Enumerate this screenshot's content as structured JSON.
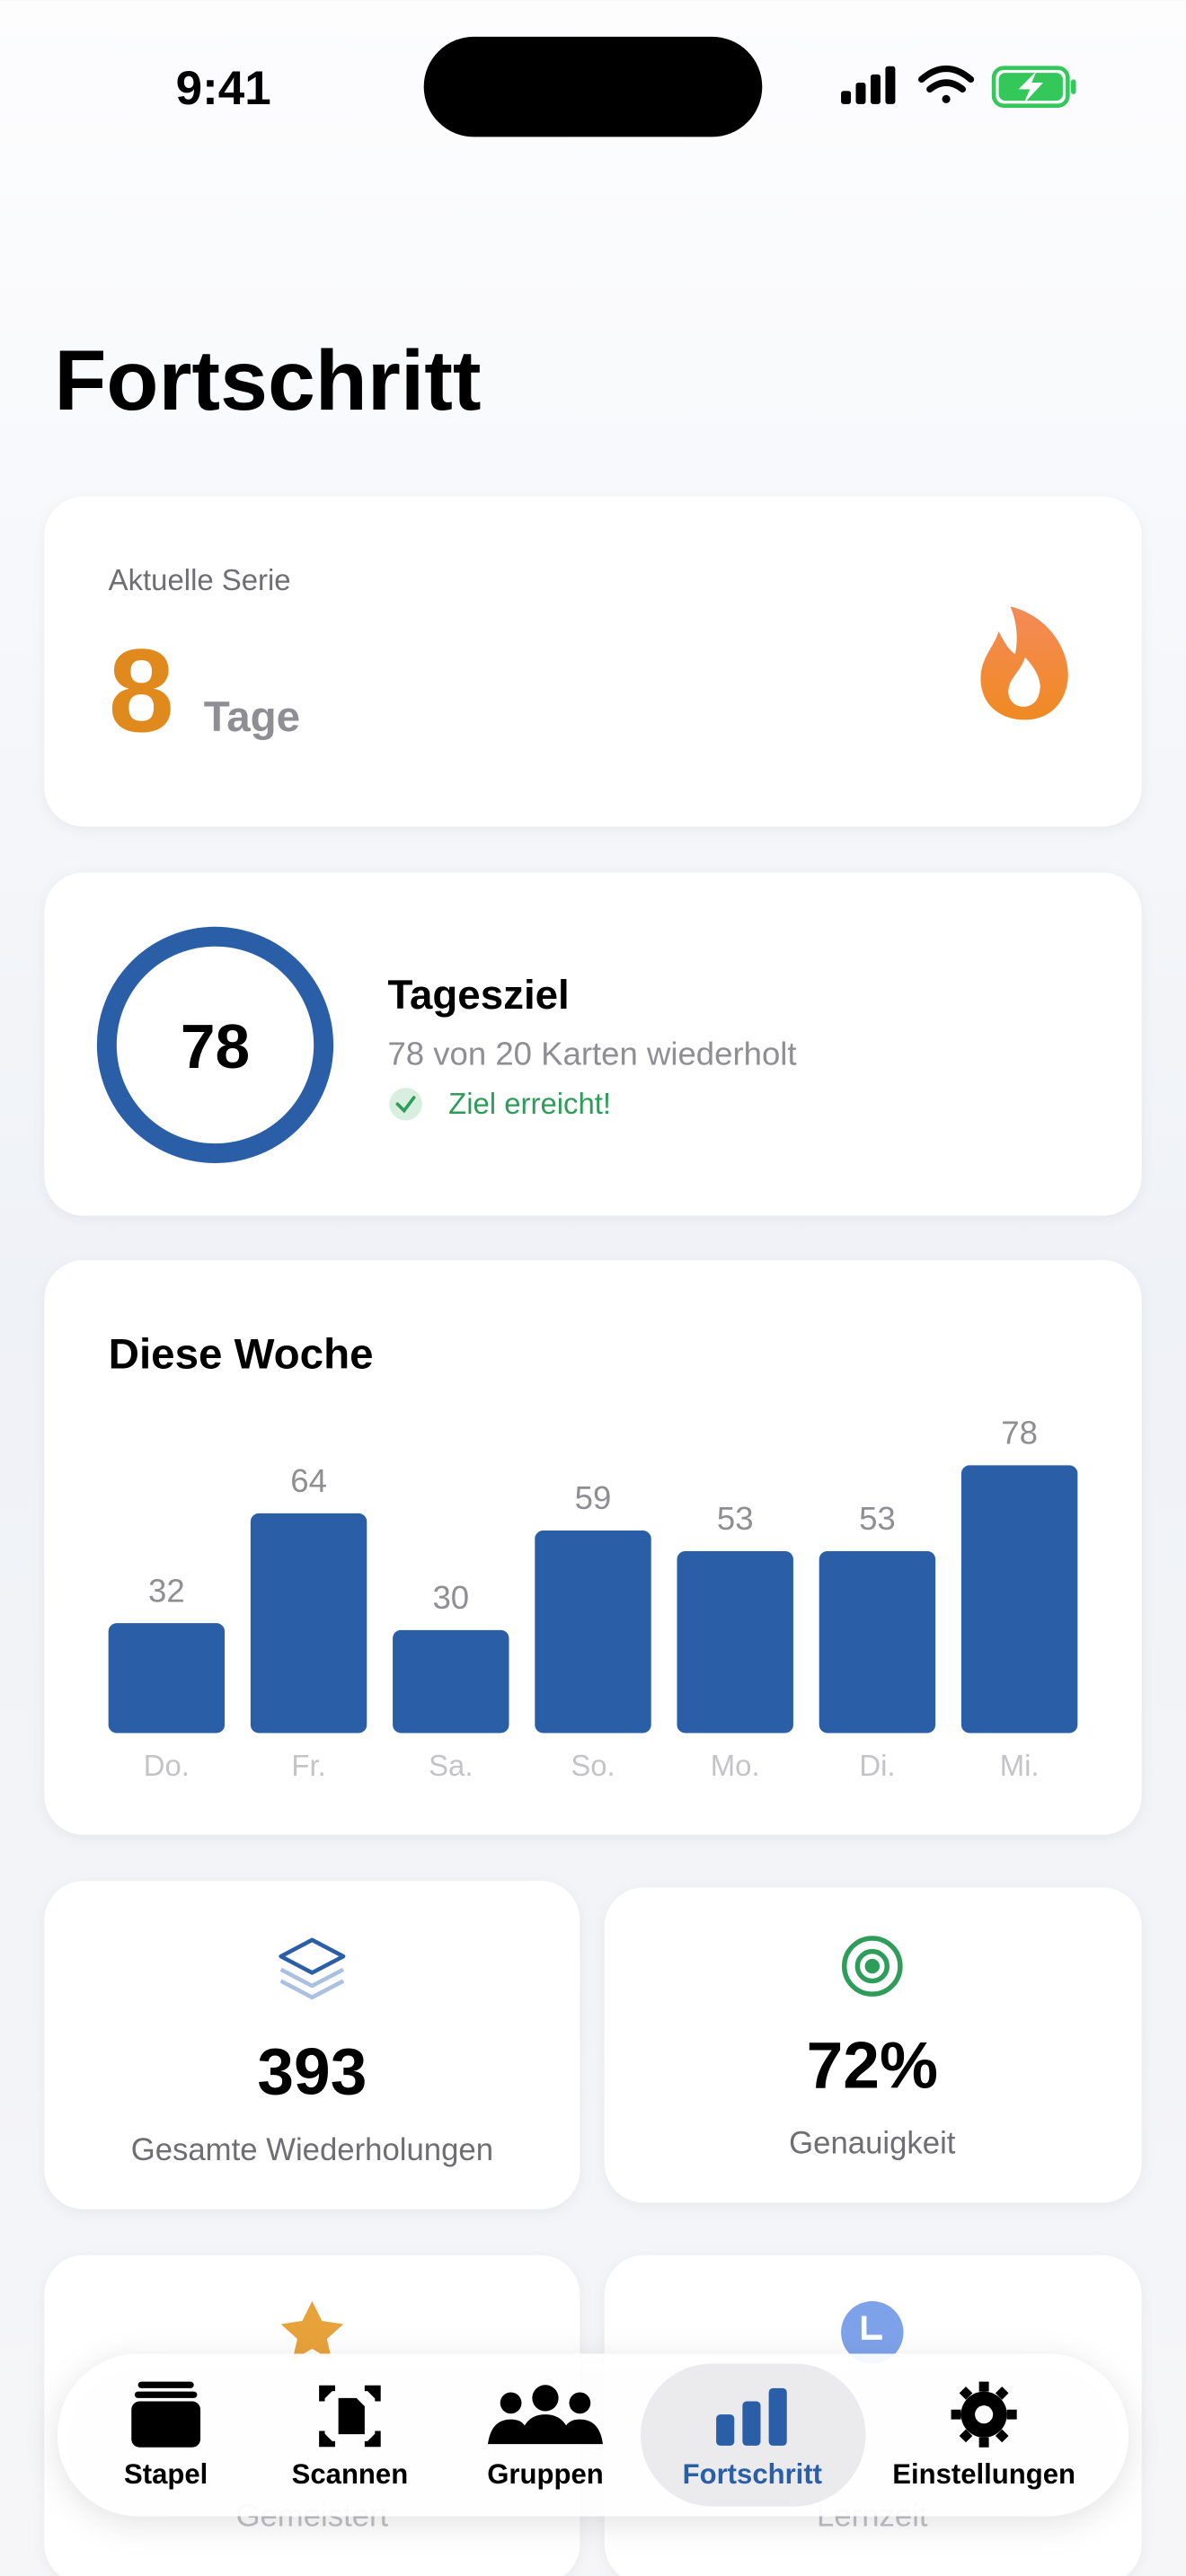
{
  "status_bar": {
    "time": "9:41"
  },
  "header": {
    "title": "Fortschritt"
  },
  "streak": {
    "label": "Aktuelle Serie",
    "value": 8,
    "unit": "Tage"
  },
  "daily_goal": {
    "value": 78,
    "title": "Tagesziel",
    "subtitle": "78 von 20 Karten wiederholt",
    "status": "Ziel erreicht!"
  },
  "week_chart": {
    "type": "bar",
    "title": "Diese Woche",
    "categories": [
      "Do.",
      "Fr.",
      "Sa.",
      "So.",
      "Mo.",
      "Di.",
      "Mi."
    ],
    "values": [
      32,
      64,
      30,
      59,
      53,
      53,
      78
    ],
    "color": "#2a5fa8"
  },
  "stats": [
    {
      "value": 393,
      "label": "Gesamte Wiederholungen"
    },
    {
      "value": "72%",
      "label": "Genauigkeit"
    },
    {
      "label": "Gemeistert"
    },
    {
      "label": "Lernzeit"
    }
  ],
  "tab_bar": {
    "items": [
      "Stapel",
      "Scannen",
      "Gruppen",
      "Fortschritt",
      "Einstellungen"
    ],
    "selected": 3
  }
}
